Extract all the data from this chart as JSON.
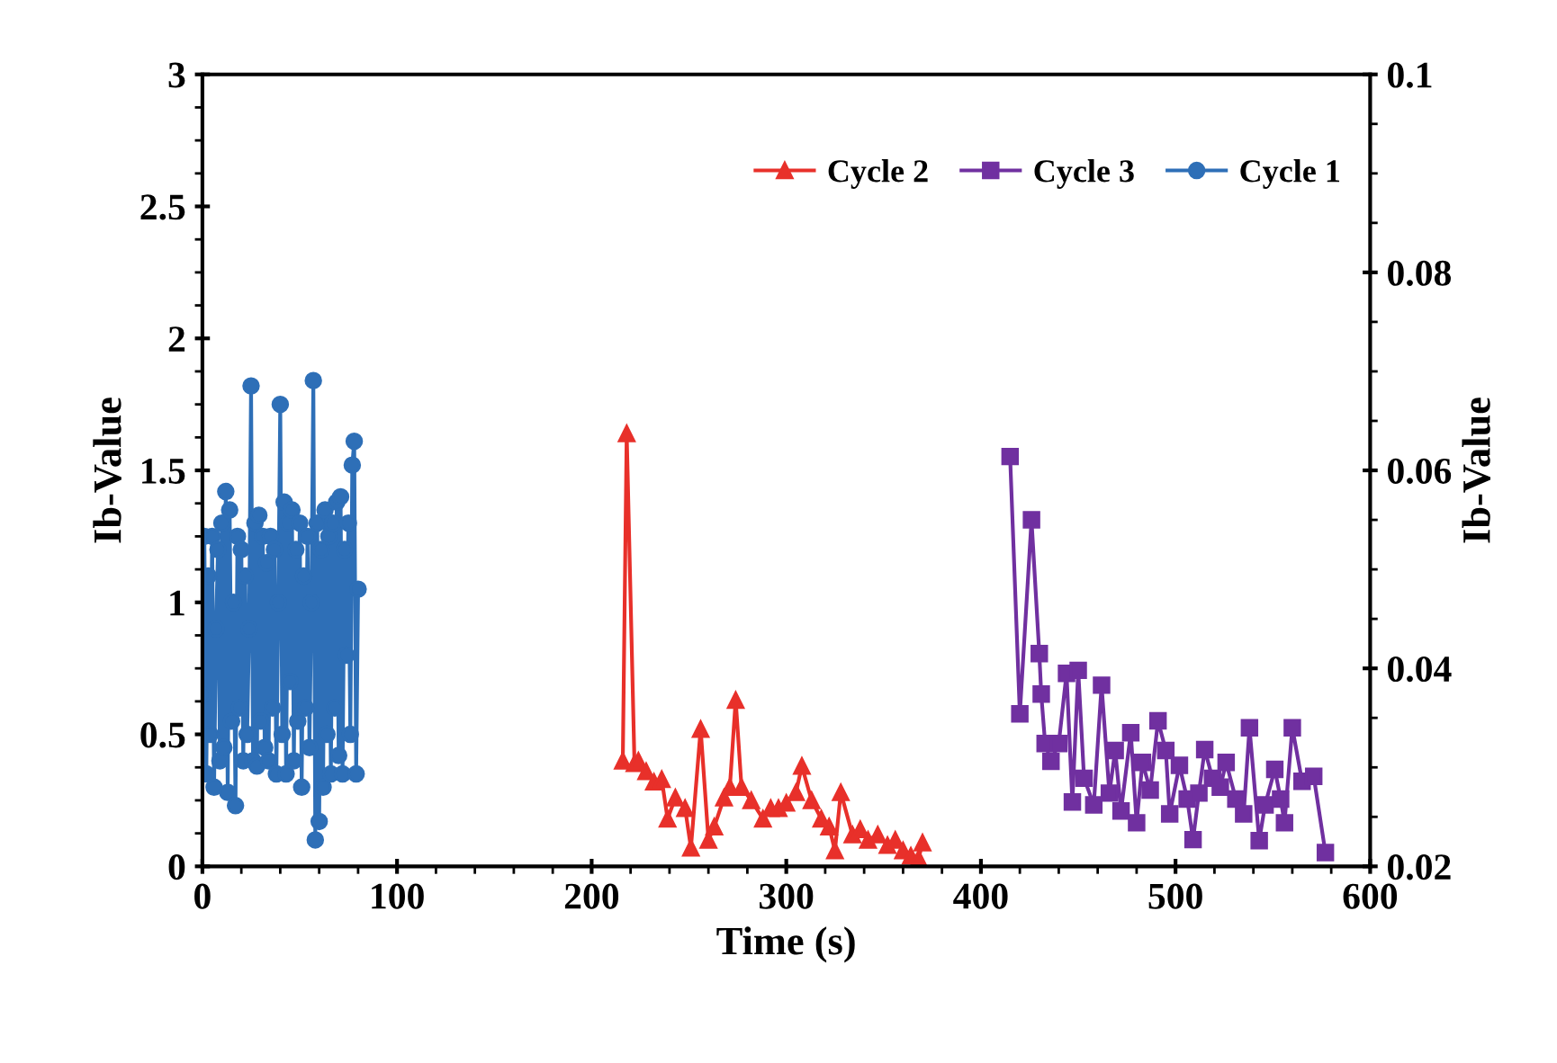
{
  "chart_data": {
    "type": "line",
    "xlabel": "Time (s)",
    "ylabel": "Ib-Value",
    "y2label": "Ib-Value",
    "xlim": [
      0,
      600
    ],
    "xticks": [
      0,
      100,
      200,
      300,
      400,
      500,
      600
    ],
    "ylim": [
      0,
      3
    ],
    "yticks": [
      0,
      0.5,
      1,
      1.5,
      2,
      2.5,
      3
    ],
    "y2lim": [
      0.02,
      0.1
    ],
    "y2ticks": [
      0.02,
      0.04,
      0.06,
      0.08,
      0.1
    ],
    "legend": "top right",
    "grid": false,
    "series": [
      {
        "name": "Cycle 2",
        "color": "#e8302a",
        "marker": "triangle",
        "x": [
          216,
          218,
          222,
          224,
          228,
          232,
          236,
          239,
          243,
          248,
          251,
          256,
          260,
          263,
          268,
          271,
          274,
          277,
          282,
          288,
          292,
          296,
          300,
          305,
          308,
          313,
          318,
          322,
          325,
          328,
          334,
          338,
          342,
          347,
          352,
          356,
          360,
          364,
          368,
          370
        ],
        "values": [
          0.4,
          1.64,
          0.39,
          0.4,
          0.36,
          0.32,
          0.33,
          0.18,
          0.26,
          0.22,
          0.07,
          0.52,
          0.1,
          0.15,
          0.26,
          0.3,
          0.63,
          0.3,
          0.25,
          0.18,
          0.22,
          0.22,
          0.24,
          0.28,
          0.38,
          0.25,
          0.18,
          0.15,
          0.06,
          0.28,
          0.12,
          0.14,
          0.1,
          0.12,
          0.08,
          0.1,
          0.06,
          0.04,
          0.03,
          0.09
        ]
      },
      {
        "name": "Cycle 3",
        "color": "#7030a0",
        "marker": "square",
        "axis": "y2",
        "x": [
          415,
          420,
          426,
          430,
          431,
          433,
          436,
          440,
          444,
          447,
          450,
          453,
          458,
          462,
          466,
          469,
          472,
          477,
          480,
          483,
          487,
          491,
          495,
          497,
          502,
          506,
          509,
          512,
          515,
          519,
          523,
          526,
          531,
          535,
          538,
          543,
          546,
          551,
          554,
          556,
          560,
          565,
          571,
          577
        ],
        "values": [
          0.0614,
          0.0354,
          0.055,
          0.0415,
          0.0374,
          0.0324,
          0.0306,
          0.0324,
          0.0395,
          0.0265,
          0.0398,
          0.0289,
          0.0262,
          0.0383,
          0.0274,
          0.0317,
          0.0256,
          0.0335,
          0.0244,
          0.0305,
          0.0277,
          0.0347,
          0.0317,
          0.0253,
          0.0302,
          0.0268,
          0.0227,
          0.0274,
          0.0318,
          0.0289,
          0.028,
          0.0305,
          0.0268,
          0.0253,
          0.034,
          0.0226,
          0.0262,
          0.0298,
          0.0268,
          0.0244,
          0.034,
          0.0286,
          0.0291,
          0.0214
        ]
      },
      {
        "name": "Cycle 1",
        "color": "#2e6fb7",
        "marker": "circle",
        "x": [
          0,
          1,
          2,
          3,
          4,
          5,
          6,
          7,
          8,
          9,
          10,
          11,
          12,
          13,
          14,
          15,
          16,
          17,
          18,
          19,
          20,
          21,
          22,
          23,
          24,
          25,
          26,
          27,
          28,
          29,
          30,
          31,
          32,
          33,
          34,
          35,
          36,
          37,
          38,
          39,
          40,
          41,
          42,
          43,
          44,
          45,
          46,
          47,
          48,
          49,
          50,
          51,
          52,
          53,
          54,
          55,
          56,
          57,
          58,
          59,
          60,
          61,
          62,
          63,
          64,
          65,
          66,
          67,
          68,
          69,
          70,
          71,
          72,
          73,
          74,
          75,
          76,
          77,
          78,
          79,
          80
        ],
        "values": [
          0.65,
          1.25,
          0.35,
          1.1,
          0.5,
          1.25,
          0.3,
          0.9,
          1.2,
          0.4,
          1.3,
          0.45,
          1.42,
          0.28,
          1.35,
          0.55,
          1.0,
          0.23,
          1.25,
          0.6,
          1.2,
          0.4,
          1.1,
          0.5,
          0.9,
          1.82,
          0.4,
          1.3,
          0.38,
          1.33,
          0.55,
          1.25,
          0.45,
          1.15,
          0.4,
          1.25,
          0.6,
          1.2,
          0.35,
          1.0,
          1.75,
          0.5,
          1.38,
          0.35,
          1.3,
          0.7,
          1.35,
          0.4,
          1.2,
          0.55,
          1.3,
          0.3,
          1.1,
          0.6,
          1.25,
          0.45,
          1.0,
          1.84,
          0.1,
          1.3,
          0.17,
          1.2,
          0.3,
          1.35,
          0.5,
          1.25,
          0.35,
          1.3,
          0.6,
          1.38,
          0.42,
          1.4,
          0.35,
          1.2,
          0.8,
          1.3,
          0.5,
          1.52,
          1.61,
          0.35,
          1.05
        ]
      }
    ]
  }
}
